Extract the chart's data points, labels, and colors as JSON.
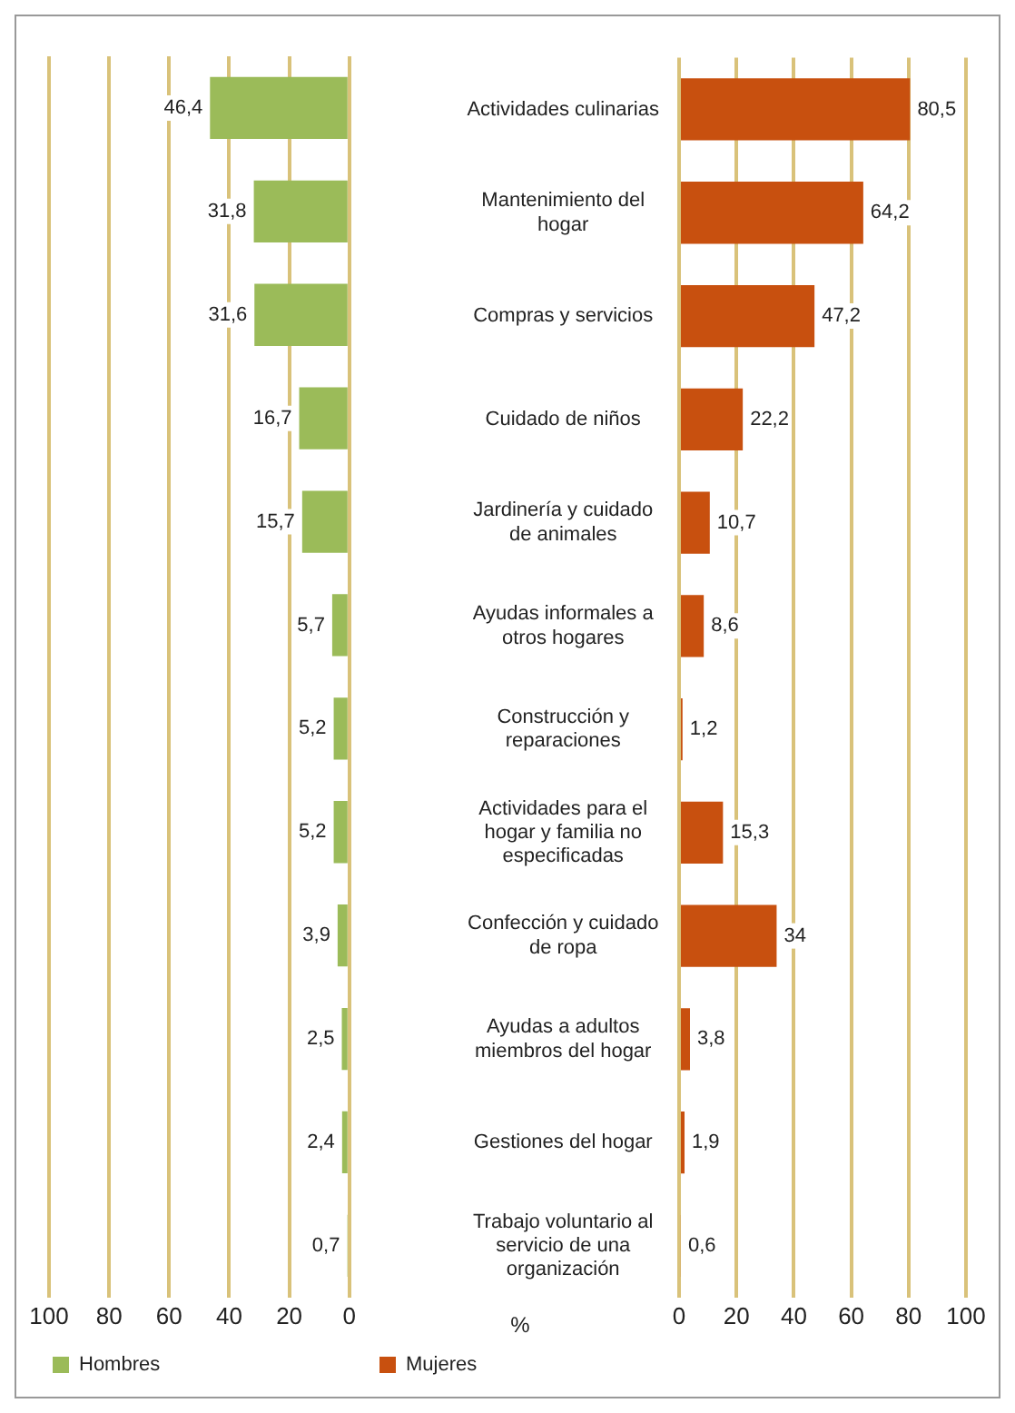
{
  "chart_data": [
    {
      "type": "bar",
      "orientation": "horizontal",
      "categories": [
        null,
        null,
        null,
        null,
        null,
        null,
        null,
        null,
        null,
        null,
        null,
        null
      ],
      "series": [
        {
          "name": "Hombres",
          "color": "#9bbb59",
          "values": [
            46.4,
            31.8,
            31.6,
            16.7,
            15.7,
            5.7,
            5.2,
            5.2,
            3.9,
            2.5,
            2.4,
            0.7
          ],
          "value_labels": [
            "46,4",
            "31,8",
            "31,6",
            "16,7",
            "15,7",
            "5,7",
            "5,2",
            "5,2",
            "3,9",
            "2,5",
            "2,4",
            "0,7"
          ]
        }
      ],
      "xlim": [
        100,
        0
      ],
      "xticks": [
        100,
        80,
        60,
        40,
        20,
        0
      ],
      "tick_labels": "x",
      "grid": "x",
      "legend": "bottom left"
    },
    {
      "type": "bar",
      "orientation": "horizontal",
      "categories": [
        "Actividades culinarias",
        "Mantenimiento del hogar",
        "Compras y servicios",
        "Cuidado de niños",
        "Jardinería y cuidado de animales",
        "Ayudas informales a otros hogares",
        "Construcción y reparaciones",
        "Actividades para el hogar y familia no especificadas",
        "Confección y cuidado de ropa",
        "Ayudas a adultos miembros del hogar",
        "Gestiones del hogar",
        "Trabajo voluntario al servicio de una organización"
      ],
      "series": [
        {
          "name": "Mujeres",
          "color": "#c8500f",
          "values": [
            80.5,
            64.2,
            47.2,
            22.2,
            10.7,
            8.6,
            1.2,
            15.3,
            34,
            3.8,
            1.9,
            0.6
          ],
          "value_labels": [
            "80,5",
            "64,2",
            "47,2",
            "22,2",
            "10,7",
            "8,6",
            "1,2",
            "15,3",
            "34",
            "3,8",
            "1,9",
            "0,6"
          ]
        }
      ],
      "xlim": [
        0,
        100
      ],
      "xticks": [
        0,
        20,
        40,
        60,
        80,
        100
      ],
      "xlabel": "%",
      "grid": "x",
      "legend": "bottom left"
    }
  ]
}
